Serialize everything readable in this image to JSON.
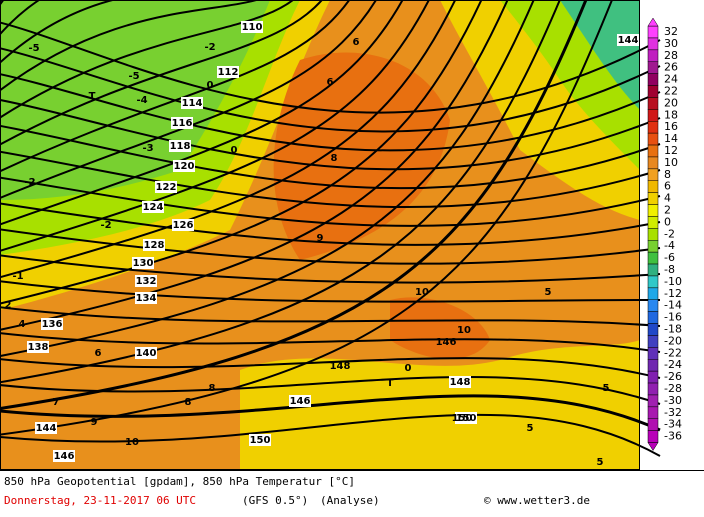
{
  "map": {
    "labels": [
      "110",
      "112",
      "114",
      "116",
      "118",
      "120",
      "122",
      "124",
      "126",
      "128",
      "130",
      "132",
      "134",
      "136",
      "138",
      "140",
      "144",
      "146",
      "148",
      "150",
      "150",
      "146",
      "144",
      "-5",
      "-5",
      "-2",
      "0",
      "0",
      "-3",
      "-4",
      "-2",
      "-2",
      "-1",
      "2",
      "4",
      "6",
      "8",
      "8",
      "9",
      "10",
      "10",
      "6",
      "6",
      "5",
      "5",
      "0",
      "T",
      "T",
      "7",
      "8",
      "9",
      "10",
      "5",
      "5",
      "146",
      "148",
      "150"
    ]
  },
  "colorbar": [
    {
      "label": "32",
      "color": "#ff40ff"
    },
    {
      "label": "30",
      "color": "#e030e0"
    },
    {
      "label": "28",
      "color": "#c020c0"
    },
    {
      "label": "26",
      "color": "#a01890"
    },
    {
      "label": "24",
      "color": "#900060"
    },
    {
      "label": "22",
      "color": "#a00030"
    },
    {
      "label": "20",
      "color": "#b81020"
    },
    {
      "label": "18",
      "color": "#d01818"
    },
    {
      "label": "16",
      "color": "#e03010"
    },
    {
      "label": "14",
      "color": "#e85010"
    },
    {
      "label": "12",
      "color": "#e87010"
    },
    {
      "label": "10",
      "color": "#e88820"
    },
    {
      "label": "8",
      "color": "#f0a020"
    },
    {
      "label": "6",
      "color": "#f0b800"
    },
    {
      "label": "4",
      "color": "#f0d000"
    },
    {
      "label": "2",
      "color": "#f0f000"
    },
    {
      "label": "0",
      "color": "#d0ec00"
    },
    {
      "label": "-2",
      "color": "#a8e000"
    },
    {
      "label": "-4",
      "color": "#78d030"
    },
    {
      "label": "-6",
      "color": "#40c040"
    },
    {
      "label": "-8",
      "color": "#30b080"
    },
    {
      "label": "-10",
      "color": "#30c8c8"
    },
    {
      "label": "-12",
      "color": "#20a8e8"
    },
    {
      "label": "-14",
      "color": "#2888f0"
    },
    {
      "label": "-16",
      "color": "#2068e0"
    },
    {
      "label": "-18",
      "color": "#2048c8"
    },
    {
      "label": "-20",
      "color": "#4040c0"
    },
    {
      "label": "-22",
      "color": "#6030b8"
    },
    {
      "label": "-24",
      "color": "#7028b0"
    },
    {
      "label": "-26",
      "color": "#8020b0"
    },
    {
      "label": "-28",
      "color": "#9020b0"
    },
    {
      "label": "-30",
      "color": "#a020b0"
    },
    {
      "label": "-32",
      "color": "#a818b0"
    },
    {
      "label": "-34",
      "color": "#b010b0"
    },
    {
      "label": "-36",
      "color": "#b800b8"
    }
  ],
  "footer": {
    "line1": "850 hPa Geopotential [gpdam], 850 hPa Temperatur [°C]",
    "date": "Donnerstag, 23-11-2017  06 UTC",
    "model": "(GFS 0.5°)",
    "kind": "(Analyse)",
    "credit": "© www.wetter3.de"
  }
}
